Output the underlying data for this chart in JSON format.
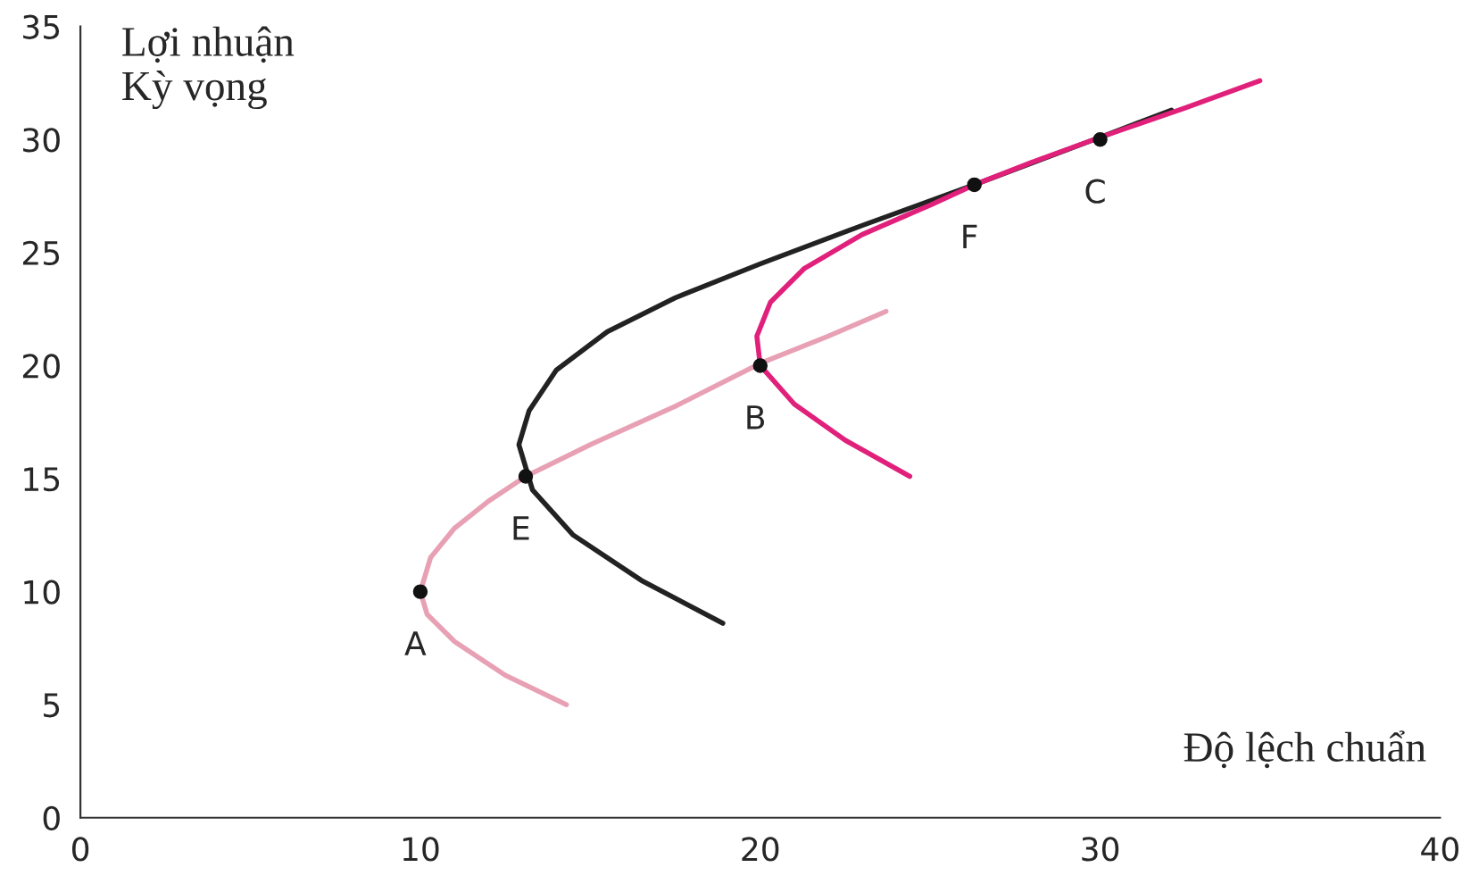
{
  "chart_data": {
    "type": "line",
    "xlabel": "Độ lệch chuẩn",
    "ylabel": "Lợi nhuận\nKỳ vọng",
    "xlim": [
      0,
      40
    ],
    "ylim": [
      0,
      35
    ],
    "xticks": [
      0,
      10,
      20,
      30,
      40
    ],
    "yticks": [
      0,
      5,
      10,
      15,
      20,
      25,
      30,
      35
    ],
    "grid": false,
    "marker": "none",
    "series": [
      {
        "color": "#e8a0b4",
        "x": [
          14.3,
          12.5,
          11.0,
          10.2,
          10.0,
          10.3,
          11.0,
          12.0,
          13.1,
          15.0,
          17.5,
          20.0,
          22.0,
          23.7
        ],
        "values": [
          5.0,
          6.3,
          7.8,
          9.0,
          10.0,
          11.5,
          12.8,
          14.0,
          15.1,
          16.5,
          18.2,
          20.1,
          21.3,
          22.4
        ]
      },
      {
        "color": "#222222",
        "x": [
          18.9,
          16.5,
          14.5,
          13.3,
          12.9,
          13.2,
          14.0,
          15.5,
          17.5,
          20.0,
          23.0,
          26.3,
          30.0,
          32.1
        ],
        "values": [
          8.6,
          10.5,
          12.5,
          14.5,
          16.5,
          18.0,
          19.8,
          21.5,
          23.0,
          24.5,
          26.2,
          28.0,
          30.1,
          31.3
        ]
      },
      {
        "color": "#e0207a",
        "x": [
          24.4,
          22.5,
          21.0,
          20.0,
          19.9,
          20.3,
          21.3,
          23.0,
          25.0,
          26.3,
          28.0,
          30.0,
          32.5,
          34.7
        ],
        "values": [
          15.1,
          16.7,
          18.3,
          20.0,
          21.3,
          22.8,
          24.3,
          25.8,
          27.1,
          28.0,
          29.0,
          30.1,
          31.4,
          32.6
        ]
      },
      {
        "type": "scatter",
        "color": "#111111",
        "marker": "circle",
        "x": [
          10,
          13.1,
          20,
          26.3,
          30
        ],
        "values": [
          10,
          15.1,
          20,
          28,
          30
        ]
      }
    ],
    "annotations": [
      {
        "text": "A",
        "x": 10,
        "y": 10
      },
      {
        "text": "E",
        "x": 13.1,
        "y": 15.1
      },
      {
        "text": "B",
        "x": 20,
        "y": 20
      },
      {
        "text": "F",
        "x": 26.3,
        "y": 28
      },
      {
        "text": "C",
        "x": 30,
        "y": 30
      }
    ]
  }
}
